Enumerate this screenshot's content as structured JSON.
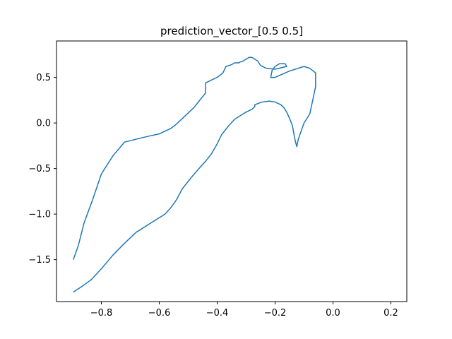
{
  "chart_data": {
    "type": "line",
    "title": "prediction_vector_[0.5 0.5]",
    "xlabel": "",
    "ylabel": "",
    "xlim": [
      -0.955,
      0.255
    ],
    "ylim": [
      -1.96,
      0.9
    ],
    "grid": false,
    "line_color": "#1f77b4",
    "x_ticks": [
      -0.8,
      -0.6,
      -0.4,
      -0.2,
      0.0,
      0.2
    ],
    "x_tick_labels": [
      "−0.8",
      "−0.6",
      "−0.4",
      "−0.2",
      "0.0",
      "0.2"
    ],
    "y_ticks": [
      -1.5,
      -1.0,
      -0.5,
      0.0,
      0.5
    ],
    "y_tick_labels": [
      "−1.5",
      "−1.0",
      "−0.5",
      "0.0",
      "0.5"
    ],
    "series": [
      {
        "x": [
          -0.897,
          -0.87,
          -0.835,
          -0.8,
          -0.76,
          -0.72,
          -0.68,
          -0.63,
          -0.58,
          -0.56,
          -0.54,
          -0.52,
          -0.49,
          -0.46,
          -0.44,
          -0.42,
          -0.4,
          -0.385,
          -0.36,
          -0.34,
          -0.32,
          -0.3,
          -0.28,
          -0.27,
          -0.27,
          -0.245,
          -0.22,
          -0.2,
          -0.18,
          -0.17,
          -0.16,
          -0.15,
          -0.14,
          -0.135,
          -0.13,
          -0.125,
          -0.12,
          -0.1,
          -0.08,
          -0.07,
          -0.06,
          -0.06,
          -0.08,
          -0.1,
          -0.15,
          -0.2,
          -0.215,
          -0.21,
          -0.2,
          -0.185,
          -0.165,
          -0.16,
          -0.2,
          -0.23,
          -0.25,
          -0.26,
          -0.28,
          -0.29,
          -0.3,
          -0.31,
          -0.32,
          -0.325,
          -0.34,
          -0.35,
          -0.37,
          -0.38,
          -0.4,
          -0.44,
          -0.44,
          -0.46,
          -0.48,
          -0.5,
          -0.52,
          -0.54,
          -0.56,
          -0.58,
          -0.6,
          -0.63,
          -0.67,
          -0.72,
          -0.76,
          -0.8,
          -0.83,
          -0.86,
          -0.88,
          -0.897
        ],
        "y": [
          -1.855,
          -1.8,
          -1.72,
          -1.6,
          -1.45,
          -1.32,
          -1.2,
          -1.1,
          -1.0,
          -0.93,
          -0.84,
          -0.72,
          -0.6,
          -0.49,
          -0.42,
          -0.34,
          -0.23,
          -0.13,
          -0.03,
          0.04,
          0.08,
          0.12,
          0.15,
          0.18,
          0.2,
          0.23,
          0.24,
          0.23,
          0.2,
          0.17,
          0.12,
          0.05,
          -0.03,
          -0.12,
          -0.2,
          -0.26,
          -0.18,
          0.0,
          0.1,
          0.25,
          0.4,
          0.55,
          0.6,
          0.62,
          0.57,
          0.5,
          0.5,
          0.58,
          0.62,
          0.65,
          0.65,
          0.62,
          0.59,
          0.6,
          0.63,
          0.68,
          0.72,
          0.72,
          0.7,
          0.68,
          0.67,
          0.66,
          0.66,
          0.64,
          0.62,
          0.55,
          0.5,
          0.44,
          0.33,
          0.25,
          0.17,
          0.11,
          0.05,
          -0.01,
          -0.06,
          -0.09,
          -0.12,
          -0.14,
          -0.17,
          -0.21,
          -0.36,
          -0.56,
          -0.84,
          -1.1,
          -1.35,
          -1.5
        ]
      }
    ]
  }
}
